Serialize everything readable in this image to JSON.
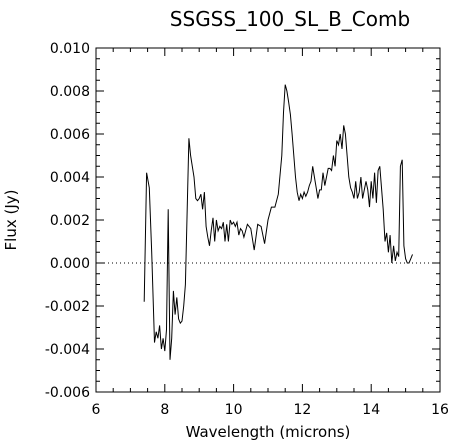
{
  "chart_data": {
    "type": "line",
    "title": "SSGSS_100_SL_B_Comb",
    "xlabel": "Wavelength (microns)",
    "ylabel": "Flux (Jy)",
    "xlim": [
      6,
      16
    ],
    "ylim": [
      -0.006,
      0.01
    ],
    "xticks": [
      6,
      8,
      10,
      12,
      14,
      16
    ],
    "xtick_labels": [
      "6",
      "8",
      "10",
      "12",
      "14",
      "16"
    ],
    "yticks": [
      -0.006,
      -0.004,
      -0.002,
      0.0,
      0.002,
      0.004,
      0.006,
      0.008,
      0.01
    ],
    "ytick_labels": [
      "-0.006",
      "-0.004",
      "-0.002",
      "0.000",
      "0.002",
      "0.004",
      "0.006",
      "0.008",
      "0.010"
    ],
    "grid": false,
    "reference_line": {
      "y": 0.0,
      "style": "dotted"
    },
    "series": [
      {
        "x": [
          7.4,
          7.47,
          7.55,
          7.62,
          7.7,
          7.75,
          7.8,
          7.85,
          7.9,
          7.95,
          8.0,
          8.05,
          8.1,
          8.15,
          8.2,
          8.25,
          8.3,
          8.35,
          8.4,
          8.45,
          8.5,
          8.55,
          8.6,
          8.65,
          8.7,
          8.75,
          8.8,
          8.85,
          8.9,
          8.95,
          9.0,
          9.05,
          9.1,
          9.15,
          9.2,
          9.25,
          9.3,
          9.35,
          9.4,
          9.45,
          9.5,
          9.55,
          9.6,
          9.65,
          9.7,
          9.75,
          9.8,
          9.85,
          9.9,
          9.95,
          10.0,
          10.05,
          10.1,
          10.15,
          10.2,
          10.25,
          10.3,
          10.4,
          10.5,
          10.6,
          10.7,
          10.8,
          10.9,
          11.0,
          11.1,
          11.2,
          11.3,
          11.4,
          11.45,
          11.5,
          11.55,
          11.6,
          11.65,
          11.7,
          11.75,
          11.8,
          11.85,
          11.9,
          11.95,
          12.0,
          12.05,
          12.1,
          12.15,
          12.2,
          12.25,
          12.3,
          12.35,
          12.4,
          12.45,
          12.5,
          12.55,
          12.6,
          12.65,
          12.7,
          12.75,
          12.8,
          12.85,
          12.9,
          12.95,
          13.0,
          13.05,
          13.1,
          13.15,
          13.2,
          13.25,
          13.3,
          13.35,
          13.4,
          13.45,
          13.5,
          13.55,
          13.6,
          13.65,
          13.7,
          13.75,
          13.8,
          13.85,
          13.9,
          13.95,
          14.0,
          14.05,
          14.1,
          14.15,
          14.2,
          14.25,
          14.3,
          14.35,
          14.4,
          14.45,
          14.5,
          14.55,
          14.6,
          14.65,
          14.7,
          14.75,
          14.8,
          14.85,
          14.9,
          14.95,
          15.0,
          15.05,
          15.1,
          15.15,
          15.2
        ],
        "y": [
          -0.0018,
          0.0042,
          0.0035,
          0.0005,
          -0.0037,
          -0.0032,
          -0.0035,
          -0.0029,
          -0.004,
          -0.0035,
          -0.0041,
          -0.0031,
          0.0025,
          -0.0045,
          -0.0035,
          -0.0013,
          -0.0024,
          -0.0016,
          -0.0026,
          -0.0028,
          -0.0027,
          -0.002,
          -0.001,
          0.0025,
          0.0058,
          0.005,
          0.0045,
          0.004,
          0.003,
          0.0029,
          0.003,
          0.0032,
          0.0025,
          0.0033,
          0.0017,
          0.0012,
          0.0008,
          0.0015,
          0.0021,
          0.001,
          0.002,
          0.0015,
          0.0017,
          0.0016,
          0.0019,
          0.001,
          0.0018,
          0.001,
          0.002,
          0.0018,
          0.0019,
          0.0017,
          0.0019,
          0.0013,
          0.0016,
          0.0015,
          0.0012,
          0.0018,
          0.0016,
          0.0006,
          0.0018,
          0.0017,
          0.0009,
          0.002,
          0.0026,
          0.0026,
          0.0032,
          0.005,
          0.007,
          0.0083,
          0.008,
          0.0075,
          0.0069,
          0.006,
          0.005,
          0.004,
          0.0033,
          0.0029,
          0.0032,
          0.003,
          0.0033,
          0.0031,
          0.0033,
          0.0036,
          0.0038,
          0.0045,
          0.004,
          0.0035,
          0.003,
          0.0034,
          0.0034,
          0.0042,
          0.0036,
          0.004,
          0.0044,
          0.0044,
          0.0043,
          0.005,
          0.0045,
          0.0057,
          0.0055,
          0.006,
          0.0053,
          0.0064,
          0.006,
          0.005,
          0.004,
          0.0035,
          0.0033,
          0.003,
          0.0038,
          0.003,
          0.0033,
          0.004,
          0.003,
          0.0034,
          0.0038,
          0.0034,
          0.0026,
          0.0038,
          0.003,
          0.0042,
          0.0028,
          0.0043,
          0.0045,
          0.0035,
          0.0025,
          0.001,
          0.0014,
          0.0005,
          0.0013,
          0.0,
          0.0008,
          0.0001,
          0.0005,
          0.0003,
          0.0045,
          0.0048,
          0.0008,
          0.0002,
          0.0,
          0.0,
          0.0002,
          0.0004
        ]
      }
    ]
  }
}
